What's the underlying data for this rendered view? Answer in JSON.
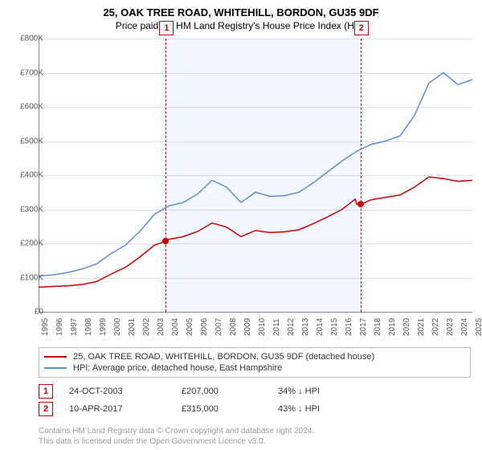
{
  "title_main": "25, OAK TREE ROAD, WHITEHILL, BORDON, GU35 9DF",
  "title_sub": "Price paid vs. HM Land Registry's House Price Index (HPI)",
  "chart": {
    "type": "line",
    "x_start_year": 1995,
    "x_end_year": 2025,
    "y_min": 0,
    "y_max": 800000,
    "y_tick_step": 100000,
    "y_tick_labels": [
      "£0",
      "£100K",
      "£200K",
      "£300K",
      "£400K",
      "£500K",
      "£600K",
      "£700K",
      "£800K"
    ],
    "x_tick_years": [
      1995,
      1996,
      1997,
      1998,
      1999,
      2000,
      2001,
      2002,
      2003,
      2004,
      2005,
      2006,
      2007,
      2008,
      2009,
      2010,
      2011,
      2012,
      2013,
      2014,
      2015,
      2016,
      2017,
      2018,
      2019,
      2020,
      2021,
      2022,
      2023,
      2024,
      2025
    ],
    "grid_color": "#e0e0e0",
    "background_color": "#ffffff",
    "shade_color": "rgba(100,150,255,0.08)",
    "colors": {
      "series_property": "#cc0000",
      "series_hpi": "#5b8fd6",
      "marker_line": "#cc0000"
    },
    "line_width": 1.5,
    "series_property": [
      [
        1995,
        72000
      ],
      [
        1996,
        74000
      ],
      [
        1997,
        76000
      ],
      [
        1998,
        80000
      ],
      [
        1999,
        88000
      ],
      [
        2000,
        110000
      ],
      [
        2001,
        130000
      ],
      [
        2002,
        160000
      ],
      [
        2003,
        195000
      ],
      [
        2003.8,
        207000
      ],
      [
        2004,
        212000
      ],
      [
        2005,
        220000
      ],
      [
        2006,
        235000
      ],
      [
        2007,
        260000
      ],
      [
        2008,
        248000
      ],
      [
        2009,
        220000
      ],
      [
        2010,
        238000
      ],
      [
        2011,
        232000
      ],
      [
        2012,
        234000
      ],
      [
        2013,
        240000
      ],
      [
        2014,
        258000
      ],
      [
        2015,
        278000
      ],
      [
        2016,
        300000
      ],
      [
        2016.9,
        330000
      ],
      [
        2017,
        315000
      ],
      [
        2017.3,
        315000
      ],
      [
        2018,
        328000
      ],
      [
        2019,
        335000
      ],
      [
        2020,
        342000
      ],
      [
        2021,
        365000
      ],
      [
        2022,
        395000
      ],
      [
        2023,
        390000
      ],
      [
        2024,
        382000
      ],
      [
        2025,
        385000
      ]
    ],
    "series_hpi": [
      [
        1995,
        105000
      ],
      [
        1996,
        108000
      ],
      [
        1997,
        115000
      ],
      [
        1998,
        125000
      ],
      [
        1999,
        140000
      ],
      [
        2000,
        170000
      ],
      [
        2001,
        195000
      ],
      [
        2002,
        235000
      ],
      [
        2003,
        285000
      ],
      [
        2004,
        310000
      ],
      [
        2005,
        320000
      ],
      [
        2006,
        345000
      ],
      [
        2007,
        385000
      ],
      [
        2008,
        365000
      ],
      [
        2009,
        320000
      ],
      [
        2010,
        350000
      ],
      [
        2011,
        338000
      ],
      [
        2012,
        340000
      ],
      [
        2013,
        350000
      ],
      [
        2014,
        378000
      ],
      [
        2015,
        410000
      ],
      [
        2016,
        442000
      ],
      [
        2017,
        470000
      ],
      [
        2018,
        490000
      ],
      [
        2019,
        500000
      ],
      [
        2020,
        515000
      ],
      [
        2021,
        575000
      ],
      [
        2022,
        670000
      ],
      [
        2023,
        700000
      ],
      [
        2024,
        665000
      ],
      [
        2025,
        680000
      ]
    ],
    "markers": [
      {
        "n": "1",
        "year": 2003.8,
        "price": 207000
      },
      {
        "n": "2",
        "year": 2017.27,
        "price": 315000
      }
    ],
    "shade_start_year": 2003.8,
    "shade_end_year": 2017.27
  },
  "legend": {
    "items": [
      {
        "color": "#cc0000",
        "label": "25, OAK TREE ROAD, WHITEHILL, BORDON, GU35 9DF (detached house)"
      },
      {
        "color": "#5b8fd6",
        "label": "HPI: Average price, detached house, East Hampshire"
      }
    ]
  },
  "events": [
    {
      "n": "1",
      "date": "24-OCT-2003",
      "price": "£207,000",
      "pct": "34% ↓ HPI"
    },
    {
      "n": "2",
      "date": "10-APR-2017",
      "price": "£315,000",
      "pct": "43% ↓ HPI"
    }
  ],
  "copyright_line1": "Contains HM Land Registry data © Crown copyright and database right 2024.",
  "copyright_line2": "This data is licensed under the Open Government Licence v3.0."
}
